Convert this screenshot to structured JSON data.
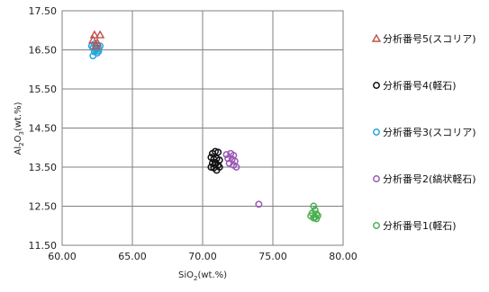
{
  "chart_data": {
    "type": "scatter",
    "title": "",
    "xlabel": {
      "base": "SiO",
      "sub": "2",
      "rest": "(wt.%)"
    },
    "ylabel": {
      "a": "Al",
      "sub1": "2",
      "b": "O",
      "sub2": "3",
      "rest": "(wt.%)"
    },
    "xlim": [
      60.0,
      80.0
    ],
    "ylim": [
      11.5,
      17.5
    ],
    "xticks": [
      "60.00",
      "65.00",
      "70.00",
      "75.00",
      "80.00"
    ],
    "yticks": [
      "11.50",
      "12.50",
      "13.50",
      "14.50",
      "15.50",
      "16.50",
      "17.50"
    ],
    "grid": true,
    "legend_position": "right",
    "series": [
      {
        "name": "分析番号5(スコリア)",
        "marker": "triangle",
        "color": "#c0504d",
        "points": [
          [
            62.3,
            16.88
          ],
          [
            62.7,
            16.88
          ],
          [
            62.2,
            16.75
          ],
          [
            62.5,
            16.68
          ],
          [
            62.4,
            16.6
          ]
        ]
      },
      {
        "name": "分析番号4(軽石)",
        "marker": "circle",
        "color": "#111111",
        "points": [
          [
            70.7,
            13.85
          ],
          [
            70.9,
            13.9
          ],
          [
            71.1,
            13.88
          ],
          [
            70.6,
            13.75
          ],
          [
            70.8,
            13.7
          ],
          [
            71.0,
            13.72
          ],
          [
            71.2,
            13.68
          ],
          [
            70.7,
            13.6
          ],
          [
            70.9,
            13.62
          ],
          [
            71.1,
            13.55
          ],
          [
            70.6,
            13.5
          ],
          [
            70.8,
            13.48
          ],
          [
            71.0,
            13.42
          ],
          [
            70.9,
            13.56
          ],
          [
            71.2,
            13.5
          ]
        ]
      },
      {
        "name": "分析番号3(スコリア)",
        "marker": "circle",
        "color": "#29a3d9",
        "points": [
          [
            62.1,
            16.6
          ],
          [
            62.3,
            16.65
          ],
          [
            62.5,
            16.62
          ],
          [
            62.7,
            16.6
          ],
          [
            62.2,
            16.55
          ],
          [
            62.4,
            16.5
          ],
          [
            62.6,
            16.52
          ],
          [
            62.3,
            16.45
          ],
          [
            62.5,
            16.42
          ],
          [
            62.2,
            16.35
          ],
          [
            62.4,
            16.58
          ],
          [
            62.6,
            16.47
          ]
        ]
      },
      {
        "name": "分析番号2(縞状軽石)",
        "marker": "circle",
        "color": "#9b59b6",
        "points": [
          [
            71.7,
            13.82
          ],
          [
            72.0,
            13.85
          ],
          [
            72.2,
            13.8
          ],
          [
            71.8,
            13.72
          ],
          [
            72.1,
            13.7
          ],
          [
            72.3,
            13.65
          ],
          [
            71.9,
            13.6
          ],
          [
            72.2,
            13.55
          ],
          [
            72.4,
            13.5
          ],
          [
            74.0,
            12.55
          ]
        ]
      },
      {
        "name": "分析番号1(軽石)",
        "marker": "circle",
        "color": "#4caf50",
        "points": [
          [
            77.9,
            12.5
          ],
          [
            78.0,
            12.4
          ],
          [
            77.8,
            12.32
          ],
          [
            78.1,
            12.3
          ],
          [
            77.7,
            12.25
          ],
          [
            78.0,
            12.22
          ],
          [
            78.1,
            12.18
          ],
          [
            77.9,
            12.2
          ],
          [
            78.2,
            12.26
          ]
        ]
      }
    ]
  }
}
